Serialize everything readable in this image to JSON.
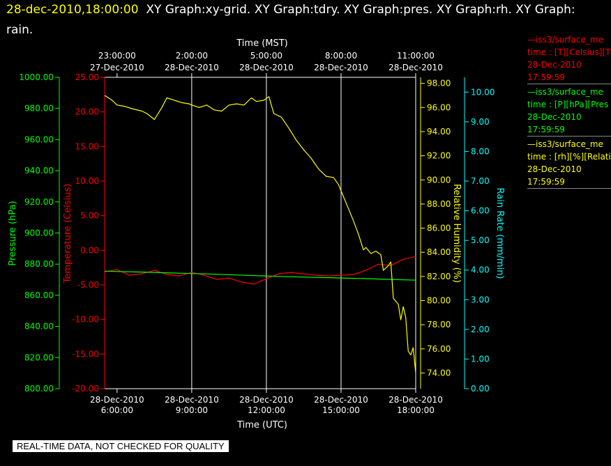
{
  "header": {
    "datetime": "28-dec-2010,18:00:00",
    "graphs": "XY Graph:xy-grid.  XY Graph:tdry.  XY Graph:pres.  XY Graph:rh.  XY Graph:",
    "graphs_cont": "rain."
  },
  "banner": "REAL-TIME DATA, NOT CHECKED FOR QUALITY",
  "legend": [
    {
      "name": "—iss3/surface_me",
      "units": "time : [T][Celsius][T",
      "date": "28-Dec-2010",
      "time": "17:59:59",
      "color": "#ff0000"
    },
    {
      "name": "—iss3/surface_me",
      "units": "time : [P][hPa][Pres",
      "date": "28-Dec-2010",
      "time": "17:59:59",
      "color": "#00ff00"
    },
    {
      "name": "—iss3/surface_me",
      "units": "time : [rh][%][Relati",
      "date": "28-Dec-2010",
      "time": "17:59:59",
      "color": "#ffff00"
    }
  ],
  "chart_data": {
    "type": "line",
    "x_bottom_label": "Time (UTC)",
    "x_top_label": "Time (MST)",
    "x_range_utc_hours": [
      5.5,
      18.0
    ],
    "bottom_ticks": [
      {
        "h": 6,
        "date": "28-Dec-2010",
        "time": "6:00:00"
      },
      {
        "h": 9,
        "date": "28-Dec-2010",
        "time": "9:00:00"
      },
      {
        "h": 12,
        "date": "28-Dec-2010",
        "time": "12:00:00"
      },
      {
        "h": 15,
        "date": "28-Dec-2010",
        "time": "15:00:00"
      },
      {
        "h": 18,
        "date": "28-Dec-2010",
        "time": "18:00:00"
      }
    ],
    "top_ticks": [
      {
        "h": 6,
        "time": "23:00:00",
        "date": "27-Dec-2010"
      },
      {
        "h": 9,
        "time": "2:00:00",
        "date": "28-Dec-2010"
      },
      {
        "h": 12,
        "time": "5:00:00",
        "date": "28-Dec-2010"
      },
      {
        "h": 15,
        "time": "8:00:00",
        "date": "28-Dec-2010"
      },
      {
        "h": 18,
        "time": "11:00:00",
        "date": "28-Dec-2010"
      }
    ],
    "gridlines_h": [
      9,
      12,
      15
    ],
    "axes": {
      "temperature": {
        "label": "Temperature (Celsius)",
        "range": [
          -20,
          25
        ],
        "ticks": [
          "-20.00",
          "-15.00",
          "-10.00",
          "-5.00",
          "0.00",
          "5.00",
          "10.00",
          "15.00",
          "20.00",
          "25.00"
        ],
        "color": "#ff0000"
      },
      "pressure": {
        "label": "Pressure (hPa)",
        "range": [
          800,
          1000
        ],
        "ticks": [
          "800.00",
          "820.00",
          "840.00",
          "860.00",
          "880.00",
          "900.00",
          "920.00",
          "940.00",
          "960.00",
          "980.00",
          "1000.00"
        ],
        "color": "#00ff00"
      },
      "rh": {
        "label": "Relative Humidity (%)",
        "range": [
          72.7,
          98.5
        ],
        "ticks": [
          "74.00",
          "76.00",
          "78.00",
          "80.00",
          "82.00",
          "84.00",
          "86.00",
          "88.00",
          "90.00",
          "92.00",
          "94.00",
          "96.00",
          "98.00"
        ],
        "color": "#ffff00"
      },
      "rain": {
        "label": "Rain Rate (mm/min)",
        "range": [
          0,
          10.5
        ],
        "ticks": [
          "0.00",
          "1.00",
          "2.00",
          "3.00",
          "4.00",
          "5.00",
          "6.00",
          "7.00",
          "8.00",
          "9.00",
          "10.00"
        ],
        "color": "#00ffff"
      }
    },
    "series": [
      {
        "axis": "temperature",
        "color": "#ff0000",
        "x": [
          5.5,
          6.0,
          6.5,
          7.0,
          7.5,
          8.0,
          8.5,
          9.0,
          9.5,
          10.0,
          10.5,
          11.0,
          11.5,
          12.0,
          12.5,
          13.0,
          13.5,
          14.0,
          14.5,
          15.0,
          15.5,
          16.0,
          16.5,
          17.0,
          17.5,
          18.0
        ],
        "y": [
          -3.1,
          -2.8,
          -3.6,
          -3.4,
          -2.9,
          -3.5,
          -3.7,
          -3.2,
          -3.6,
          -4.2,
          -4.0,
          -4.6,
          -4.9,
          -4.1,
          -3.4,
          -3.2,
          -3.4,
          -3.6,
          -3.7,
          -3.6,
          -3.5,
          -2.9,
          -2.0,
          -2.2,
          -1.3,
          -0.9
        ]
      },
      {
        "axis": "pressure",
        "color": "#00ff00",
        "x": [
          5.5,
          7.0,
          8.5,
          10.0,
          11.5,
          13.0,
          14.5,
          16.0,
          17.0,
          18.0
        ],
        "y": [
          875.5,
          874.9,
          874.2,
          873.5,
          872.6,
          871.9,
          871.3,
          870.7,
          870.2,
          869.7
        ]
      },
      {
        "axis": "rh",
        "color": "#ffff00",
        "x": [
          5.5,
          5.8,
          6.0,
          6.3,
          6.6,
          7.0,
          7.2,
          7.5,
          7.8,
          8.0,
          8.3,
          8.6,
          8.9,
          9.0,
          9.3,
          9.6,
          9.9,
          10.2,
          10.5,
          10.8,
          11.1,
          11.4,
          11.6,
          11.9,
          12.1,
          12.3,
          12.6,
          12.9,
          13.2,
          13.5,
          13.8,
          14.1,
          14.4,
          14.7,
          14.9,
          15.1,
          15.3,
          15.5,
          15.7,
          15.9,
          16.0,
          16.2,
          16.4,
          16.6,
          16.7,
          16.9,
          17.0,
          17.1,
          17.3,
          17.4,
          17.5,
          17.6,
          17.7,
          17.8,
          17.9,
          18.0
        ],
        "y": [
          97.0,
          96.6,
          96.2,
          96.1,
          95.9,
          95.7,
          95.5,
          95.0,
          96.0,
          96.8,
          96.6,
          96.4,
          96.3,
          96.2,
          96.0,
          96.2,
          95.8,
          95.7,
          96.2,
          96.3,
          96.2,
          96.8,
          96.5,
          96.6,
          96.9,
          95.5,
          95.2,
          94.3,
          93.3,
          92.5,
          91.8,
          90.9,
          90.3,
          90.2,
          89.6,
          88.6,
          87.6,
          86.6,
          85.5,
          84.2,
          84.4,
          83.9,
          84.1,
          83.8,
          82.5,
          82.9,
          83.2,
          80.2,
          79.7,
          78.4,
          79.5,
          78.6,
          75.8,
          75.5,
          76.1,
          74.0
        ]
      },
      {
        "axis": "rain",
        "color": "#00ffff",
        "x": [],
        "y": []
      }
    ]
  }
}
